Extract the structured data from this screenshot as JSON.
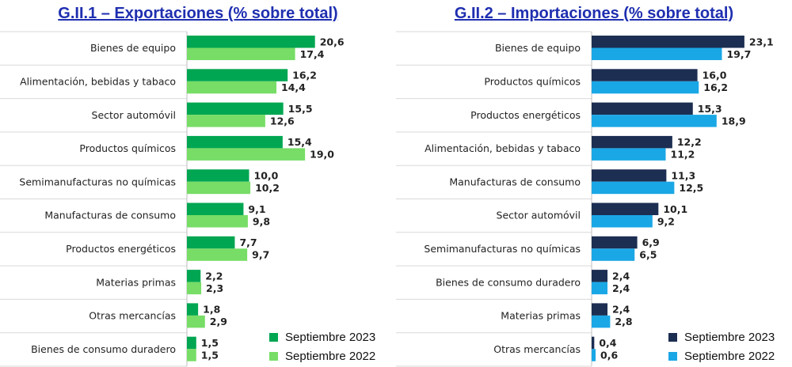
{
  "chart_data": [
    {
      "type": "bar",
      "orientation": "horizontal",
      "title": "G.II.1 – Exportaciones (% sobre total)",
      "categories": [
        "Bienes de equipo",
        "Alimentación, bebidas y tabaco",
        "Sector automóvil",
        "Productos químicos",
        "Semimanufacturas no químicas",
        "Manufacturas de consumo",
        "Productos energéticos",
        "Materias primas",
        "Otras mercancías",
        "Bienes de consumo duradero"
      ],
      "series": [
        {
          "name": "Septiembre 2023",
          "color": "#00a651",
          "values": [
            20.6,
            16.2,
            15.5,
            15.4,
            10.0,
            9.1,
            7.7,
            2.2,
            1.8,
            1.5
          ],
          "labels": [
            "20,6",
            "16,2",
            "15,5",
            "15,4",
            "10,0",
            "9,1",
            "7,7",
            "2,2",
            "1,8",
            "1,5"
          ]
        },
        {
          "name": "Septiembre 2022",
          "color": "#77dd66",
          "values": [
            17.4,
            14.4,
            12.6,
            19.0,
            10.2,
            9.8,
            9.7,
            2.3,
            2.9,
            1.5
          ],
          "labels": [
            "17,4",
            "14,4",
            "12,6",
            "19,0",
            "10,2",
            "9,8",
            "9,7",
            "2,3",
            "2,9",
            "1,5"
          ]
        }
      ],
      "xlim": [
        0,
        25
      ],
      "legend_position": "bottom-right",
      "grid": false
    },
    {
      "type": "bar",
      "orientation": "horizontal",
      "title": "G.II.2 – Importaciones (% sobre total)",
      "categories": [
        "Bienes de equipo",
        "Productos químicos",
        "Productos energéticos",
        "Alimentación, bebidas y tabaco",
        "Manufacturas de consumo",
        "Sector automóvil",
        "Semimanufacturas no químicas",
        "Bienes de consumo duradero",
        "Materias primas",
        "Otras mercancías"
      ],
      "series": [
        {
          "name": "Septiembre 2023",
          "color": "#1c2e52",
          "values": [
            23.1,
            16.0,
            15.3,
            12.2,
            11.3,
            10.1,
            6.9,
            2.4,
            2.4,
            0.4
          ],
          "labels": [
            "23,1",
            "16,0",
            "15,3",
            "12,2",
            "11,3",
            "10,1",
            "6,9",
            "2,4",
            "2,4",
            "0,4"
          ]
        },
        {
          "name": "Septiembre 2022",
          "color": "#1aa7e6",
          "values": [
            19.7,
            16.2,
            18.9,
            11.2,
            12.5,
            9.2,
            6.5,
            2.4,
            2.8,
            0.6
          ],
          "labels": [
            "19,7",
            "16,2",
            "18,9",
            "11,2",
            "12,5",
            "9,2",
            "6,5",
            "2,4",
            "2,8",
            "0,6"
          ]
        }
      ],
      "xlim": [
        0,
        25
      ],
      "legend_position": "bottom-right",
      "grid": false
    }
  ]
}
